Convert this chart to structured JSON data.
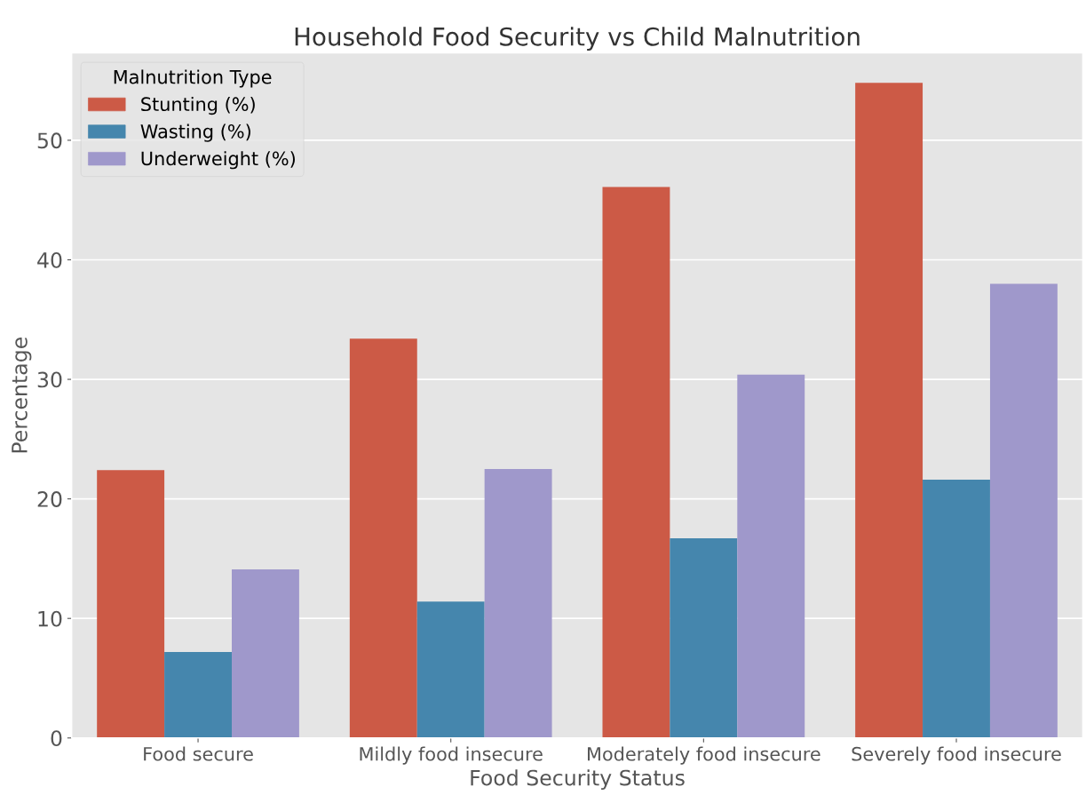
{
  "chart_data": {
    "type": "bar",
    "title": "Household Food Security vs Child Malnutrition",
    "xlabel": "Food Security Status",
    "ylabel": "Percentage",
    "legend_title": "Malnutrition Type",
    "categories": [
      "Food secure",
      "Mildly food insecure",
      "Moderately food insecure",
      "Severely food insecure"
    ],
    "series": [
      {
        "name": "Stunting (%)",
        "color": "#cc5a46",
        "values": [
          22.4,
          33.4,
          46.1,
          54.8
        ]
      },
      {
        "name": "Wasting (%)",
        "color": "#4586ad",
        "values": [
          7.2,
          11.4,
          16.7,
          21.6
        ]
      },
      {
        "name": "Underweight (%)",
        "color": "#9f98cb",
        "values": [
          14.1,
          22.5,
          30.4,
          38.0
        ]
      }
    ],
    "ylim": [
      0,
      57.3
    ],
    "yticks": [
      0,
      10,
      20,
      30,
      40,
      50
    ],
    "grid": "y",
    "legend": "top left"
  }
}
